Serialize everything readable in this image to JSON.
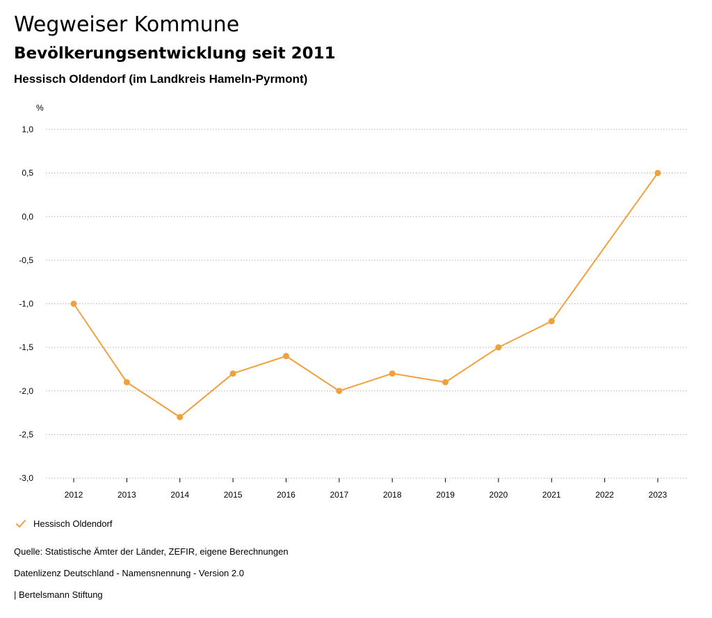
{
  "header": {
    "title": "Wegweiser Kommune",
    "subtitle": "Bevölkerungsentwicklung seit 2011",
    "region": "Hessisch Oldendorf (im Landkreis Hameln-Pyrmont)"
  },
  "chart_data": {
    "type": "line",
    "ylabel": "%",
    "ylim": [
      -3.0,
      1.0
    ],
    "y_ticks": [
      "1,0",
      "0,5",
      "0,0",
      "-0,5",
      "-1,0",
      "-1,5",
      "-2,0",
      "-2,5",
      "-3,0"
    ],
    "y_tick_values": [
      1.0,
      0.5,
      0.0,
      -0.5,
      -1.0,
      -1.5,
      -2.0,
      -2.5,
      -3.0
    ],
    "categories": [
      "2012",
      "2013",
      "2014",
      "2015",
      "2016",
      "2017",
      "2018",
      "2019",
      "2020",
      "2021",
      "2022",
      "2023"
    ],
    "series": [
      {
        "name": "Hessisch Oldendorf",
        "color": "#f0a03c",
        "values": [
          -1.0,
          -1.9,
          -2.3,
          -1.8,
          -1.6,
          -2.0,
          -1.8,
          -1.9,
          -1.5,
          -1.2,
          null,
          0.5
        ]
      }
    ],
    "grid": "horizontal-dotted",
    "legend": "bottom-left"
  },
  "legend": {
    "items": [
      {
        "label": "Hessisch Oldendorf",
        "icon": "check-icon",
        "color": "#f0a03c"
      }
    ]
  },
  "footer": {
    "source": "Quelle: Statistische Ämter der Länder, ZEFIR, eigene Berechnungen",
    "license": "Datenlizenz Deutschland - Namensnennung - Version 2.0",
    "credit": "| Bertelsmann Stiftung"
  }
}
